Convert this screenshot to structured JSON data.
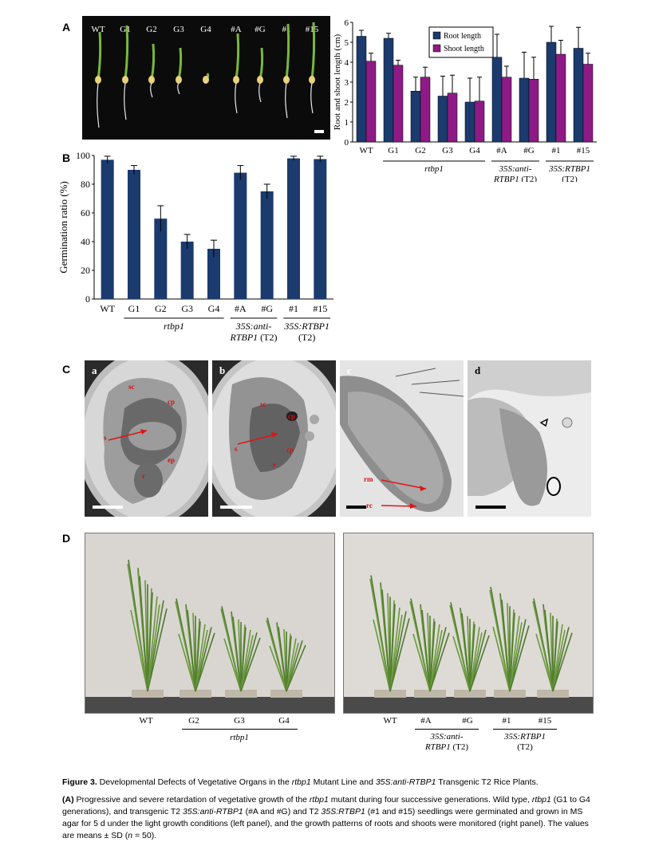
{
  "panel_letters": {
    "a": "A",
    "b": "B",
    "c": "C",
    "d": "D"
  },
  "panel_a_photo": {
    "labels": [
      "WT",
      "G1",
      "G2",
      "G3",
      "G4",
      "#A",
      "#G",
      "#1",
      "#15"
    ]
  },
  "chart_data": [
    {
      "type": "bar",
      "ylabel": "Root and shoot length (cm)",
      "ylim": [
        0,
        6
      ],
      "yticks": [
        0,
        1,
        2,
        3,
        4,
        5,
        6
      ],
      "categories": [
        "WT",
        "G1",
        "G2",
        "G3",
        "G4",
        "#A",
        "#G",
        "#1",
        "#15"
      ],
      "series": [
        {
          "name": "Root length",
          "color": "#1b3a6e",
          "values": [
            5.3,
            5.2,
            2.55,
            2.3,
            2.0,
            4.25,
            3.2,
            5.0,
            4.7
          ],
          "errors": [
            0.3,
            0.25,
            0.7,
            1.0,
            1.2,
            1.15,
            1.3,
            0.8,
            1.05
          ]
        },
        {
          "name": "Shoot length",
          "color": "#8e1a85",
          "values": [
            4.05,
            3.85,
            3.25,
            2.45,
            2.05,
            3.25,
            3.15,
            4.4,
            3.9
          ],
          "errors": [
            0.4,
            0.25,
            0.5,
            0.9,
            1.2,
            0.55,
            1.1,
            0.7,
            0.55
          ]
        }
      ],
      "legend": "top-right",
      "groups": [
        {
          "label": "rtbp1",
          "italic": true
        },
        {
          "label_line1": "35S:anti-",
          "label_line2": "RTBP1",
          "suffix": " (T2)"
        },
        {
          "label_line1": "35S:RTBP1",
          "suffix2": "(T2)"
        }
      ]
    },
    {
      "type": "bar",
      "ylabel": "Germination ratio (%)",
      "ylim": [
        0,
        100
      ],
      "yticks": [
        0,
        20,
        40,
        60,
        80,
        100
      ],
      "categories": [
        "WT",
        "G1",
        "G2",
        "G3",
        "G4",
        "#A",
        "#G",
        "#1",
        "#15"
      ],
      "series": [
        {
          "color": "#1b3a6e",
          "values": [
            97,
            90,
            56,
            40,
            35,
            88,
            75,
            98,
            97.5
          ],
          "errors": [
            2.5,
            3,
            9,
            5,
            6,
            5,
            5,
            1.5,
            2
          ]
        }
      ]
    }
  ],
  "panel_c": {
    "subpanels": [
      "a",
      "b",
      "c",
      "d"
    ],
    "a_labels": {
      "sc": "sc",
      "cp": "cp",
      "s": "s",
      "ep": "ep",
      "r": "r"
    },
    "b_labels": {
      "sc": "sc",
      "cp": "cp",
      "s": "s",
      "cp2": "cp",
      "r": "r"
    },
    "c_labels": {
      "rm": "rm",
      "rc": "rc"
    }
  },
  "panel_d": {
    "left_labels": [
      "WT",
      "G2",
      "G3",
      "G4"
    ],
    "left_group": "rtbp1",
    "right_labels": [
      "WT",
      "#A",
      "#G",
      "#1",
      "#15"
    ],
    "right_group1_line1": "35S:anti-",
    "right_group1_line2": "RTBP1",
    "right_group1_suffix": " (T2)",
    "right_group2_line1": "35S:RTBP1",
    "right_group2_line2": "(T2)"
  },
  "caption": {
    "figure_label": "Figure 3.",
    "title_part1": " Developmental Defects of Vegetative Organs in the ",
    "title_italic1": "rtbp1",
    "title_part2": " Mutant Line and ",
    "title_italic2": "35S:anti-RTBP1",
    "title_part3": " Transgenic T2 Rice Plants.",
    "para_label": "(A)",
    "para_text1": " Progressive and severe retardation of vegetative growth of the ",
    "para_italic1": "rtbp1",
    "para_text2": " mutant during four successive generations. Wild type, ",
    "para_italic2": "rtbp1",
    "para_text3": " (G1 to G4 generations), and transgenic T2 ",
    "para_italic3": "35S:anti-RTBP1",
    "para_text4": " (#A and #G) and T2 ",
    "para_italic4": "35S:RTBP1",
    "para_text5": " (#1 and #15) seedlings were germinated and grown in MS agar for 5 d under the light growth conditions (left panel), and the growth patterns of roots and shoots were monitored (right panel). The values are means ± SD (",
    "para_italic5": "n",
    "para_text6": " = 50)."
  }
}
